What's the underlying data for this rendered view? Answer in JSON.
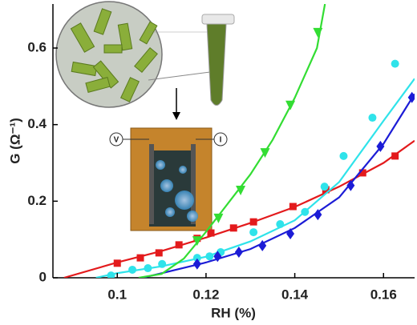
{
  "chart_data": {
    "type": "scatter",
    "xlabel": "RH (%)",
    "ylabel": "G (Ω⁻¹)",
    "xlim": [
      0.0855,
      0.167
    ],
    "ylim": [
      0,
      0.715
    ],
    "xticks": [
      0.1,
      0.12,
      0.14,
      0.16
    ],
    "yticks": [
      0,
      0.2,
      0.4,
      0.6
    ],
    "series": [
      {
        "color": "#e31a1c",
        "marker": "square",
        "x": [
          0.1,
          0.1052,
          0.1094,
          0.1139,
          0.118,
          0.1211,
          0.1262,
          0.1307,
          0.1396,
          0.147,
          0.1553,
          0.1626
        ],
        "values": [
          0.038,
          0.052,
          0.065,
          0.086,
          0.103,
          0.117,
          0.13,
          0.146,
          0.186,
          0.23,
          0.274,
          0.318
        ],
        "fit": {
          "x": [
            0.088,
            0.1,
            0.11,
            0.12,
            0.13,
            0.14,
            0.15,
            0.16,
            0.167
          ],
          "values": [
            0,
            0.04,
            0.07,
            0.105,
            0.143,
            0.185,
            0.238,
            0.3,
            0.358
          ]
        }
      },
      {
        "color": "#2fe3ea",
        "marker": "circle",
        "x": [
          0.0986,
          0.1034,
          0.1069,
          0.1101,
          0.118,
          0.1208,
          0.1233,
          0.1307,
          0.1367,
          0.1423,
          0.1467,
          0.151,
          0.1575,
          0.1626
        ],
        "values": [
          0.006,
          0.021,
          0.025,
          0.036,
          0.052,
          0.056,
          0.067,
          0.119,
          0.14,
          0.172,
          0.238,
          0.318,
          0.418,
          0.559
        ],
        "fit": {
          "x": [
            0.0952,
            0.1,
            0.11,
            0.12,
            0.13,
            0.14,
            0.15,
            0.16,
            0.167
          ],
          "values": [
            0,
            0.012,
            0.03,
            0.055,
            0.095,
            0.15,
            0.25,
            0.41,
            0.52
          ]
        }
      },
      {
        "color": "#1c1cd6",
        "marker": "diamond",
        "x": [
          0.118,
          0.1226,
          0.1274,
          0.1327,
          0.139,
          0.1452,
          0.1526,
          0.1593,
          0.1664
        ],
        "values": [
          0.036,
          0.056,
          0.067,
          0.084,
          0.115,
          0.165,
          0.241,
          0.343,
          0.471
        ],
        "fit": {
          "x": [
            0.1057,
            0.11,
            0.12,
            0.13,
            0.14,
            0.15,
            0.16,
            0.167
          ],
          "values": [
            0,
            0.012,
            0.04,
            0.075,
            0.13,
            0.21,
            0.35,
            0.48
          ]
        }
      },
      {
        "color": "#33dd33",
        "marker": "triangle-down",
        "x": [
          0.118,
          0.1228,
          0.1278,
          0.1333,
          0.139,
          0.1452
        ],
        "values": [
          0.098,
          0.157,
          0.23,
          0.328,
          0.452,
          0.642
        ],
        "fit": {
          "x": [
            0.1048,
            0.11,
            0.115,
            0.12,
            0.125,
            0.13,
            0.135,
            0.14,
            0.145,
            0.1468
          ],
          "values": [
            0,
            0.01,
            0.05,
            0.12,
            0.195,
            0.27,
            0.36,
            0.47,
            0.6,
            0.715
          ]
        }
      }
    ]
  },
  "illustration": {
    "labels": [
      "V",
      "I"
    ]
  }
}
